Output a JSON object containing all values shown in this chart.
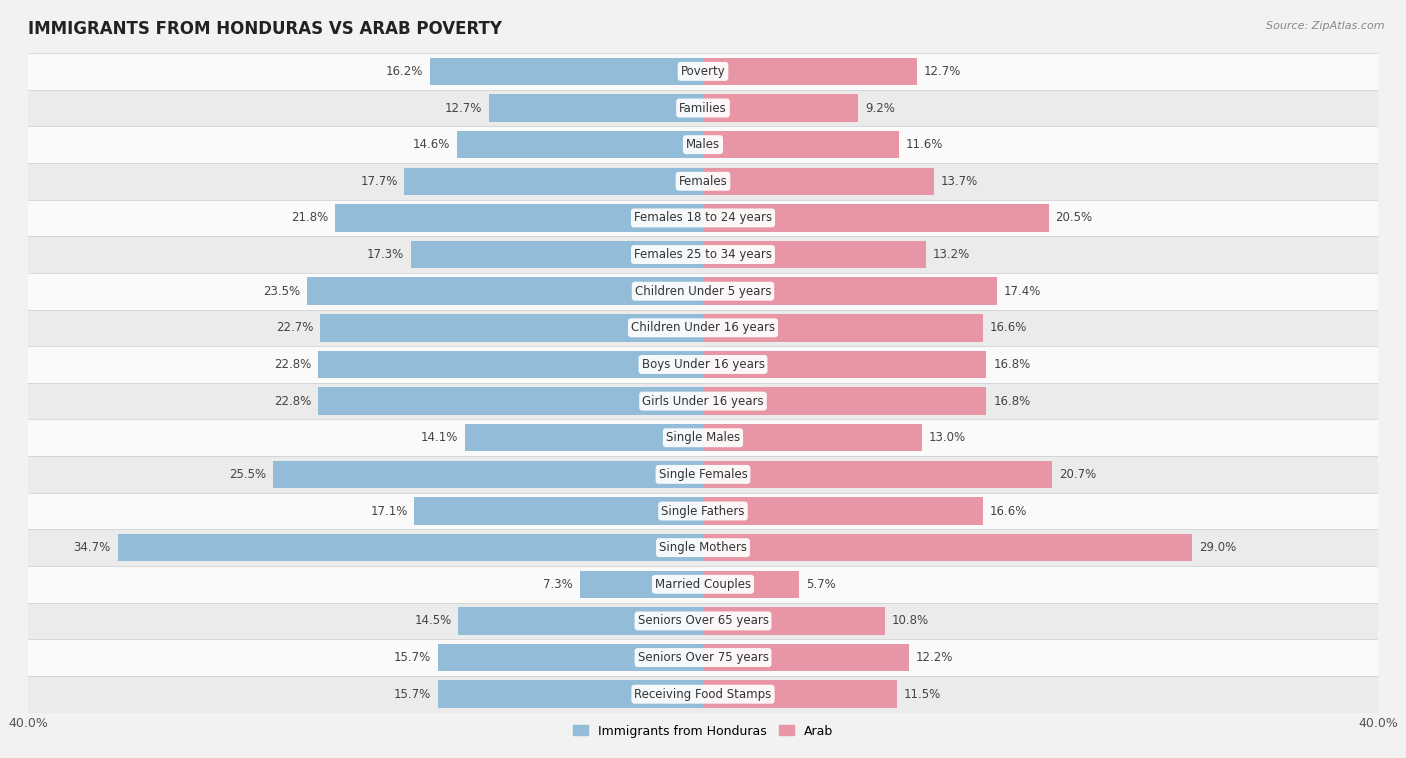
{
  "title": "IMMIGRANTS FROM HONDURAS VS ARAB POVERTY",
  "source": "Source: ZipAtlas.com",
  "categories": [
    "Poverty",
    "Families",
    "Males",
    "Females",
    "Females 18 to 24 years",
    "Females 25 to 34 years",
    "Children Under 5 years",
    "Children Under 16 years",
    "Boys Under 16 years",
    "Girls Under 16 years",
    "Single Males",
    "Single Females",
    "Single Fathers",
    "Single Mothers",
    "Married Couples",
    "Seniors Over 65 years",
    "Seniors Over 75 years",
    "Receiving Food Stamps"
  ],
  "honduras_values": [
    16.2,
    12.7,
    14.6,
    17.7,
    21.8,
    17.3,
    23.5,
    22.7,
    22.8,
    22.8,
    14.1,
    25.5,
    17.1,
    34.7,
    7.3,
    14.5,
    15.7,
    15.7
  ],
  "arab_values": [
    12.7,
    9.2,
    11.6,
    13.7,
    20.5,
    13.2,
    17.4,
    16.6,
    16.8,
    16.8,
    13.0,
    20.7,
    16.6,
    29.0,
    5.7,
    10.8,
    12.2,
    11.5
  ],
  "honduras_color": "#92bcd8",
  "arab_color": "#e896a6",
  "background_color": "#f2f2f2",
  "row_color_light": "#fafafa",
  "row_color_dark": "#ebebeb",
  "axis_limit": 40.0,
  "legend_labels": [
    "Immigrants from Honduras",
    "Arab"
  ],
  "title_fontsize": 12,
  "label_fontsize": 8.5,
  "value_fontsize": 8.5
}
